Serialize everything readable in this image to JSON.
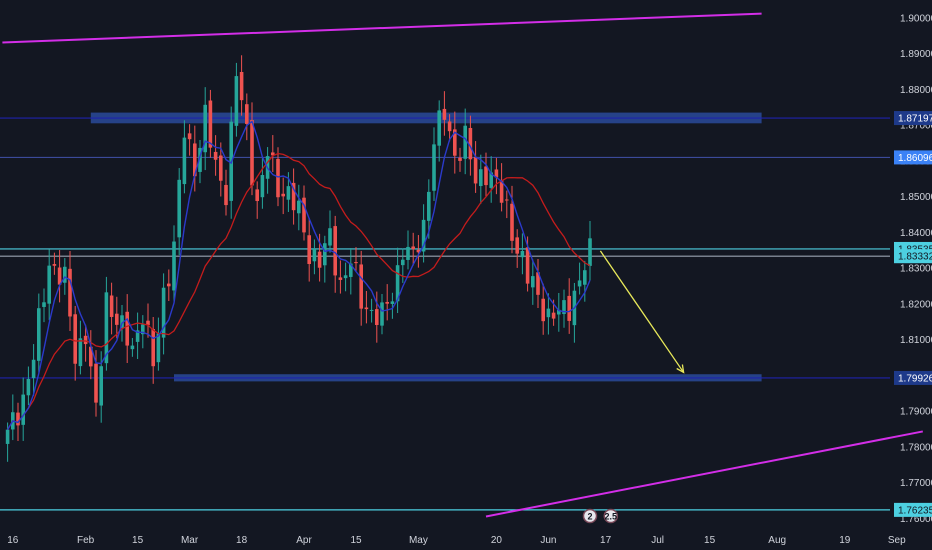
{
  "chart_data": {
    "type": "candlestick",
    "y_range": [
      1.757,
      1.905
    ],
    "y_ticks": [
      {
        "value": 1.9,
        "label": "1.90000"
      },
      {
        "value": 1.89,
        "label": "1.89000"
      },
      {
        "value": 1.88,
        "label": "1.88000"
      },
      {
        "value": 1.87,
        "label": "1.87000"
      },
      {
        "value": 1.86,
        "label": "1.86000"
      },
      {
        "value": 1.85,
        "label": "1.85000"
      },
      {
        "value": 1.84,
        "label": "1.84000"
      },
      {
        "value": 1.83,
        "label": "1.83000"
      },
      {
        "value": 1.82,
        "label": "1.82000"
      },
      {
        "value": 1.81,
        "label": "1.81000"
      },
      {
        "value": 1.8,
        "label": "1.80000"
      },
      {
        "value": 1.79,
        "label": "1.79000"
      },
      {
        "value": 1.78,
        "label": "1.78000"
      },
      {
        "value": 1.77,
        "label": "1.77000"
      },
      {
        "value": 1.76,
        "label": "1.76000"
      }
    ],
    "x_ticks": [
      {
        "label": "16",
        "index": 1
      },
      {
        "label": "Feb",
        "index": 15
      },
      {
        "label": "15",
        "index": 25
      },
      {
        "label": "Mar",
        "index": 35
      },
      {
        "label": "18",
        "index": 45
      },
      {
        "label": "Apr",
        "index": 57
      },
      {
        "label": "15",
        "index": 67
      },
      {
        "label": "May",
        "index": 79
      },
      {
        "label": "20",
        "index": 94
      },
      {
        "label": "Jun",
        "index": 104
      },
      {
        "label": "17",
        "index": 115
      },
      {
        "label": "Jul",
        "index": 125
      },
      {
        "label": "15",
        "index": 135
      },
      {
        "label": "Aug",
        "index": 148
      },
      {
        "label": "19",
        "index": 161
      },
      {
        "label": "Sep",
        "index": 171
      }
    ],
    "x_total_bars": 175,
    "anchors": [
      [
        0,
        1.783
      ],
      [
        3,
        1.794
      ],
      [
        5,
        1.805
      ],
      [
        8,
        1.832
      ],
      [
        11,
        1.826
      ],
      [
        13,
        1.806
      ],
      [
        15,
        1.812
      ],
      [
        17,
        1.789
      ],
      [
        19,
        1.822
      ],
      [
        22,
        1.812
      ],
      [
        24,
        1.808
      ],
      [
        26,
        1.818
      ],
      [
        28,
        1.802
      ],
      [
        30,
        1.823
      ],
      [
        32,
        1.836
      ],
      [
        34,
        1.868
      ],
      [
        36,
        1.859
      ],
      [
        38,
        1.872
      ],
      [
        40,
        1.858
      ],
      [
        42,
        1.852
      ],
      [
        44,
        1.884
      ],
      [
        46,
        1.868
      ],
      [
        48,
        1.848
      ],
      [
        50,
        1.862
      ],
      [
        52,
        1.853
      ],
      [
        54,
        1.851
      ],
      [
        56,
        1.845
      ],
      [
        58,
        1.835
      ],
      [
        60,
        1.832
      ],
      [
        62,
        1.838
      ],
      [
        64,
        1.826
      ],
      [
        66,
        1.832
      ],
      [
        68,
        1.821
      ],
      [
        70,
        1.818
      ],
      [
        72,
        1.816
      ],
      [
        74,
        1.823
      ],
      [
        76,
        1.836
      ],
      [
        78,
        1.832
      ],
      [
        80,
        1.842
      ],
      [
        82,
        1.866
      ],
      [
        84,
        1.873
      ],
      [
        86,
        1.862
      ],
      [
        88,
        1.866
      ],
      [
        90,
        1.854
      ],
      [
        92,
        1.858
      ],
      [
        94,
        1.853
      ],
      [
        96,
        1.846
      ],
      [
        98,
        1.836
      ],
      [
        100,
        1.827
      ],
      [
        102,
        1.823
      ],
      [
        104,
        1.816
      ],
      [
        106,
        1.817
      ],
      [
        108,
        1.82
      ],
      [
        110,
        1.826
      ],
      [
        112,
        1.834
      ]
    ],
    "ma_red_period": 20,
    "ma_blue_period": 5,
    "horizontal_levels": [
      {
        "value": 1.87197,
        "label": "1.87197",
        "color": "#1e22aa",
        "tag_color": "#1e3a8a",
        "tag_text_color": "#ffffff"
      },
      {
        "value": 1.86096,
        "label": "1.86096",
        "color": "#3b4a9a",
        "tag_color": "#3b82f6",
        "tag_text_color": "#ffffff"
      },
      {
        "value": 1.83535,
        "label": "1.83535",
        "color": "#4dd0e1",
        "tag_color": "#4dd0e1",
        "tag_text_color": "#131722"
      },
      {
        "value": 1.83332,
        "label": "1.83332",
        "color": "#9aa4b1",
        "tag_color": "#4dd0e1",
        "tag_text_color": "#131722"
      },
      {
        "value": 1.79926,
        "label": "1.79926",
        "color": "#1e22aa",
        "tag_color": "#1e3a8a",
        "tag_text_color": "#ffffff"
      },
      {
        "value": 1.76235,
        "label": "1.76235",
        "color": "#4dd0e1",
        "tag_color": "#4dd0e1",
        "tag_text_color": "#131722"
      }
    ],
    "zones": [
      {
        "x_start": 16,
        "x_end": 145,
        "y_low": 1.8705,
        "y_high": 1.8735,
        "color": "#2a4a9a"
      },
      {
        "x_start": 32,
        "x_end": 145,
        "y_low": 1.7983,
        "y_high": 1.8003,
        "color": "#2a4a9a"
      }
    ],
    "trendlines": [
      {
        "x1": -1,
        "y1": 1.8931,
        "x2": 145,
        "y2": 1.9012,
        "color": "#d32ee8"
      },
      {
        "x1": 92,
        "y1": 1.7605,
        "x2": 176,
        "y2": 1.7843,
        "color": "#d32ee8"
      }
    ],
    "projection_arrow": {
      "x1": 114,
      "y1": 1.8348,
      "x2": 130,
      "y2": 1.8008,
      "color": "#e8e85a"
    },
    "colors": {
      "up": "#26a69a",
      "down": "#ef5350",
      "ma_red": "#c41c1c",
      "ma_blue": "#2b3acb",
      "axis_text": "#d1d4dc"
    },
    "event_markers": [
      {
        "label": "2",
        "index": 112
      },
      {
        "label": "2.5",
        "index": 116
      }
    ]
  }
}
